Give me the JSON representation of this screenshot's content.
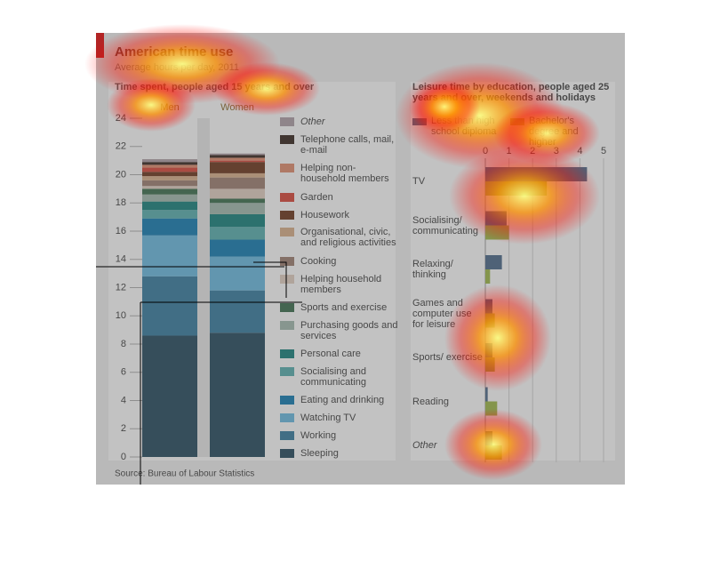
{
  "header": {
    "title": "American time use",
    "subtitle": "Average hours per day, 2011"
  },
  "source": "Source: Bureau of Labour Statistics",
  "chart_data": [
    {
      "type": "stacked_bar",
      "title": "Time spent, people aged 15 years and over",
      "categories": [
        "Men",
        "Women"
      ],
      "ylim": [
        0,
        24
      ],
      "yticks": [
        0,
        2,
        4,
        6,
        8,
        10,
        12,
        14,
        16,
        18,
        20,
        22,
        24
      ],
      "grid": true,
      "series": [
        {
          "name": "Sleeping",
          "color": "#1b3d50",
          "values": [
            8.6,
            8.8
          ]
        },
        {
          "name": "Working",
          "color": "#2a6b8c",
          "values": [
            4.2,
            3.0
          ]
        },
        {
          "name": "Watching TV",
          "color": "#5aa4c8",
          "values": [
            2.9,
            2.4
          ]
        },
        {
          "name": "Eating and drinking",
          "color": "#0a6a9c",
          "values": [
            1.2,
            1.2
          ]
        },
        {
          "name": "Socialising and communicating",
          "color": "#4a9a9a",
          "values": [
            0.6,
            0.9
          ]
        },
        {
          "name": "Personal care",
          "color": "#0c6f6a",
          "values": [
            0.6,
            0.9
          ]
        },
        {
          "name": "Purchasing goods and services",
          "color": "#8fa49a",
          "values": [
            0.5,
            0.8
          ]
        },
        {
          "name": "Sports and exercise",
          "color": "#2f5e3f",
          "values": [
            0.4,
            0.3
          ]
        },
        {
          "name": "Helping household members",
          "color": "#c9b8ab",
          "values": [
            0.2,
            0.7
          ]
        },
        {
          "name": "Cooking",
          "color": "#8a6e60",
          "values": [
            0.4,
            0.8
          ]
        },
        {
          "name": "Organisational, civic, and religious activities",
          "color": "#c09a78",
          "values": [
            0.3,
            0.3
          ]
        },
        {
          "name": "Housework",
          "color": "#5c2a12",
          "values": [
            0.3,
            0.8
          ]
        },
        {
          "name": "Garden",
          "color": "#c0392b",
          "values": [
            0.3,
            0.1
          ]
        },
        {
          "name": "Helping non-household members",
          "color": "#c77a5e",
          "values": [
            0.2,
            0.2
          ]
        },
        {
          "name": "Telephone calls, mail, e-mail",
          "color": "#2a1a14",
          "values": [
            0.2,
            0.2
          ]
        },
        {
          "name": "Other",
          "color": "#9a8c92",
          "values": [
            0.2,
            0.1
          ]
        }
      ]
    },
    {
      "type": "hbar",
      "title": "Leisure time by education, people aged 25 years and over, weekends and holidays",
      "categories": [
        "TV",
        "Socialising/ communicating",
        "Relaxing/ thinking",
        "Games and computer use for leisure",
        "Sports/ exercise",
        "Reading",
        "Other"
      ],
      "xlim": [
        0,
        5
      ],
      "xticks": [
        0,
        1,
        2,
        3,
        4,
        5
      ],
      "grid": true,
      "series": [
        {
          "name": "Less than high school diploma",
          "color": "#3e5a78",
          "values": [
            4.3,
            0.9,
            0.7,
            0.3,
            0.3,
            0.1,
            0.3
          ]
        },
        {
          "name": "Bachelor's degree and higher",
          "color": "#8aa23a",
          "values": [
            2.6,
            1.0,
            0.2,
            0.4,
            0.4,
            0.5,
            0.7
          ]
        }
      ]
    }
  ]
}
